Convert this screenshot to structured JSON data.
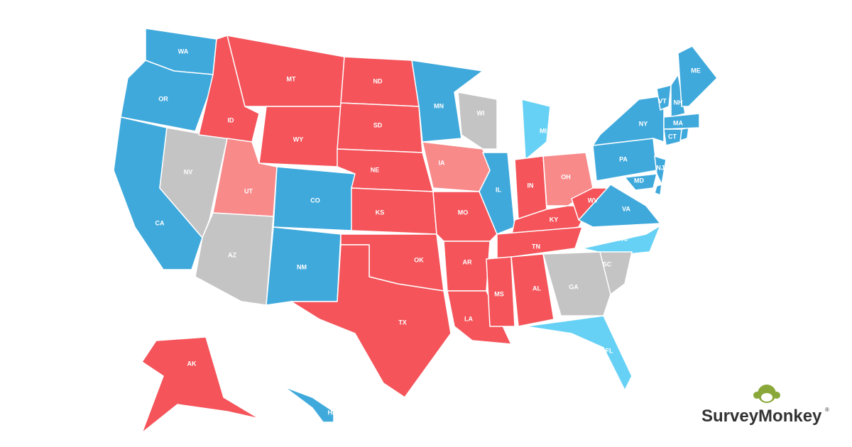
{
  "states": [
    {
      "label": "WA",
      "color": "#3fa9dc"
    },
    {
      "label": "OR",
      "color": "#3fa9dc"
    },
    {
      "label": "CA",
      "color": "#3fa9dc"
    },
    {
      "label": "NV",
      "color": "#c4c4c4"
    },
    {
      "label": "ID",
      "color": "#f4545a"
    },
    {
      "label": "MT",
      "color": "#f4545a"
    },
    {
      "label": "WY",
      "color": "#f4545a"
    },
    {
      "label": "UT",
      "color": "#f88a8a"
    },
    {
      "label": "CO",
      "color": "#3fa9dc"
    },
    {
      "label": "AZ",
      "color": "#c4c4c4"
    },
    {
      "label": "NM",
      "color": "#3fa9dc"
    },
    {
      "label": "ND",
      "color": "#f4545a"
    },
    {
      "label": "SD",
      "color": "#f4545a"
    },
    {
      "label": "NE",
      "color": "#f4545a"
    },
    {
      "label": "KS",
      "color": "#f4545a"
    },
    {
      "label": "OK",
      "color": "#f4545a"
    },
    {
      "label": "TX",
      "color": "#f4545a"
    },
    {
      "label": "MN",
      "color": "#3fa9dc"
    },
    {
      "label": "IA",
      "color": "#f88a8a"
    },
    {
      "label": "MO",
      "color": "#f4545a"
    },
    {
      "label": "AR",
      "color": "#f4545a"
    },
    {
      "label": "LA",
      "color": "#f4545a"
    },
    {
      "label": "WI",
      "color": "#c4c4c4"
    },
    {
      "label": "IL",
      "color": "#3fa9dc"
    },
    {
      "label": "MI",
      "color": "#66d1f5"
    },
    {
      "label": "IN",
      "color": "#f4545a"
    },
    {
      "label": "OH",
      "color": "#f88a8a"
    },
    {
      "label": "KY",
      "color": "#f4545a"
    },
    {
      "label": "TN",
      "color": "#f4545a"
    },
    {
      "label": "MS",
      "color": "#f4545a"
    },
    {
      "label": "AL",
      "color": "#f4545a"
    },
    {
      "label": "WV",
      "color": "#f4545a"
    },
    {
      "label": "VA",
      "color": "#3fa9dc"
    },
    {
      "label": "NC",
      "color": "#66d1f5"
    },
    {
      "label": "SC",
      "color": "#c4c4c4"
    },
    {
      "label": "GA",
      "color": "#c4c4c4"
    },
    {
      "label": "FL",
      "color": "#66d1f5"
    },
    {
      "label": "PA",
      "color": "#3fa9dc"
    },
    {
      "label": "NY",
      "color": "#3fa9dc"
    },
    {
      "label": "MD",
      "color": "#3fa9dc"
    },
    {
      "label": "NJ",
      "color": "#3fa9dc"
    },
    {
      "label": "VT",
      "color": "#3fa9dc"
    },
    {
      "label": "NH",
      "color": "#3fa9dc"
    },
    {
      "label": "MA",
      "color": "#3fa9dc"
    },
    {
      "label": "CT",
      "color": "#3fa9dc"
    },
    {
      "label": "ME",
      "color": "#3fa9dc"
    },
    {
      "label": "AK",
      "color": "#f4545a"
    },
    {
      "label": "HI",
      "color": "#3fa9dc"
    }
  ],
  "logo": {
    "name": "SurveyMonkey",
    "mark": "®"
  }
}
